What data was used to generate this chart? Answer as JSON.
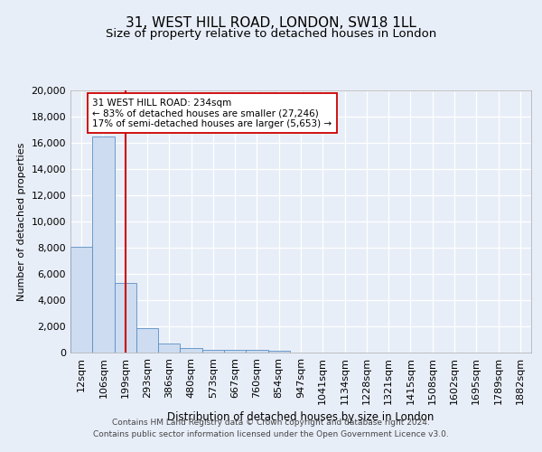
{
  "title": "31, WEST HILL ROAD, LONDON, SW18 1LL",
  "subtitle": "Size of property relative to detached houses in London",
  "xlabel": "Distribution of detached houses by size in London",
  "ylabel": "Number of detached properties",
  "categories": [
    "12sqm",
    "106sqm",
    "199sqm",
    "293sqm",
    "386sqm",
    "480sqm",
    "573sqm",
    "667sqm",
    "760sqm",
    "854sqm",
    "947sqm",
    "1041sqm",
    "1134sqm",
    "1228sqm",
    "1321sqm",
    "1415sqm",
    "1508sqm",
    "1602sqm",
    "1695sqm",
    "1789sqm",
    "1882sqm"
  ],
  "bar_heights": [
    8100,
    16500,
    5300,
    1850,
    700,
    320,
    230,
    200,
    200,
    170,
    0,
    0,
    0,
    0,
    0,
    0,
    0,
    0,
    0,
    0,
    0
  ],
  "bar_color": "#cddcf0",
  "bar_edge_color": "#5b8ec4",
  "red_line_x": 2,
  "red_line_color": "#cc0000",
  "annotation_text": "31 WEST HILL ROAD: 234sqm\n← 83% of detached houses are smaller (27,246)\n17% of semi-detached houses are larger (5,653) →",
  "annotation_box_color": "#ffffff",
  "annotation_box_edge": "#cc0000",
  "ylim": [
    0,
    20000
  ],
  "yticks": [
    0,
    2000,
    4000,
    6000,
    8000,
    10000,
    12000,
    14000,
    16000,
    18000,
    20000
  ],
  "footer_line1": "Contains HM Land Registry data © Crown copyright and database right 2024.",
  "footer_line2": "Contains public sector information licensed under the Open Government Licence v3.0.",
  "bg_color": "#e8eef8",
  "plot_bg_color": "#e8eef8",
  "grid_color": "#ffffff",
  "title_fontsize": 11,
  "subtitle_fontsize": 9.5
}
